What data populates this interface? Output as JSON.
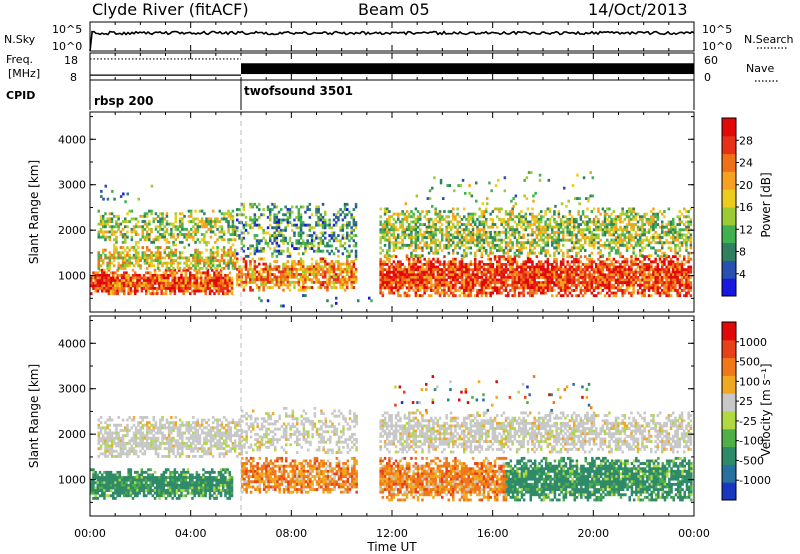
{
  "header": {
    "station": "Clyde River (fitACF)",
    "beam": "Beam 05",
    "date": "14/Oct/2013"
  },
  "strip_nsky": {
    "left_label": "N.Sky",
    "left_tick_top": "10^5",
    "left_tick_bottom": "10^0",
    "right_tick_top": "10^5",
    "right_tick_bottom": "10^0",
    "right_label": "N.Search",
    "nsky_level": 0.62,
    "nsearch_level": 0.62
  },
  "strip_freq": {
    "left_label_line1": "Freq.",
    "left_label_line2": "[MHz]",
    "left_tick_top": "18",
    "left_tick_bottom": "8",
    "right_tick_top": "60",
    "right_tick_bottom": "0",
    "right_label": "Nave",
    "freq_mhz": 10.2,
    "nave_segments": [
      {
        "from_hour": 0,
        "to_hour": 6,
        "dotted_level_fraction": 0.78,
        "solid_level_fraction": 0.18
      },
      {
        "from_hour": 6,
        "to_hour": 24,
        "band_low": 0.22,
        "band_high": 0.62
      }
    ]
  },
  "cpid": {
    "label": "CPID",
    "segments": [
      {
        "start_hour": 0,
        "name": "rbsp 200"
      },
      {
        "start_hour": 6,
        "name": "twofsound 3501"
      }
    ]
  },
  "chart_data": [
    {
      "type": "heatmap",
      "title": "",
      "xlabel": "",
      "ylabel": "Slant Range [km]",
      "xlim": [
        0,
        24
      ],
      "ylim": [
        200,
        4600
      ],
      "yticks": [
        "1000",
        "2000",
        "3000",
        "4000"
      ],
      "colorbar": {
        "label": "Power [dB]",
        "ticks": [
          "4",
          "8",
          "12",
          "16",
          "20",
          "24",
          "28"
        ],
        "colors": [
          "#1818e0",
          "#2850b0",
          "#2e8060",
          "#40b050",
          "#9ccc34",
          "#eccc1c",
          "#f8a020",
          "#f07018",
          "#e83018",
          "#e00808"
        ]
      },
      "bands": [
        {
          "t0": 0.0,
          "t1": 5.6,
          "r_lo": 600,
          "r_hi": 1150,
          "density": 0.95,
          "bias": 0.85
        },
        {
          "t0": 0.3,
          "t1": 5.8,
          "r_lo": 1150,
          "r_hi": 1650,
          "density": 0.7,
          "bias": 0.55
        },
        {
          "t0": 0.3,
          "t1": 5.8,
          "r_lo": 1700,
          "r_hi": 2450,
          "density": 0.55,
          "bias": 0.45
        },
        {
          "t0": 0.4,
          "t1": 2.5,
          "r_lo": 2600,
          "r_hi": 3000,
          "density": 0.08,
          "bias": 0.25
        },
        {
          "t0": 5.8,
          "t1": 10.6,
          "r_lo": 700,
          "r_hi": 1400,
          "density": 0.8,
          "bias": 0.7
        },
        {
          "t0": 5.8,
          "t1": 10.6,
          "r_lo": 1400,
          "r_hi": 2600,
          "density": 0.45,
          "bias": 0.3
        },
        {
          "t0": 6.5,
          "t1": 11.2,
          "r_lo": 300,
          "r_hi": 650,
          "density": 0.06,
          "bias": 0.1
        },
        {
          "t0": 11.5,
          "t1": 23.9,
          "r_lo": 550,
          "r_hi": 1450,
          "density": 0.92,
          "bias": 0.88
        },
        {
          "t0": 11.5,
          "t1": 23.9,
          "r_lo": 1450,
          "r_hi": 2500,
          "density": 0.65,
          "bias": 0.45
        },
        {
          "t0": 12.5,
          "t1": 20.0,
          "r_lo": 2500,
          "r_hi": 3300,
          "density": 0.07,
          "bias": 0.4
        }
      ]
    },
    {
      "type": "heatmap",
      "title": "",
      "xlabel": "Time UT",
      "ylabel": "Slant Range [km]",
      "xlim": [
        0,
        24
      ],
      "ylim": [
        200,
        4600
      ],
      "yticks": [
        "1000",
        "2000",
        "3000",
        "4000"
      ],
      "xticks": [
        "00:00",
        "04:00",
        "08:00",
        "12:00",
        "16:00",
        "20:00",
        "00:00"
      ],
      "colorbar": {
        "label": "Velocity [m s⁻¹]",
        "ticks": [
          "1000",
          "500",
          "100",
          "25",
          "-25",
          "-100",
          "-500",
          "-1000"
        ],
        "colors": [
          "#1838c0",
          "#2870a0",
          "#2e8a68",
          "#50b048",
          "#b0d840",
          "#c8c8c8",
          "#f0a820",
          "#f07818",
          "#e84018",
          "#e00808"
        ]
      },
      "bands": [
        {
          "t0": 0.0,
          "t1": 5.6,
          "r_lo": 600,
          "r_hi": 1250,
          "density": 0.95,
          "kind": "green"
        },
        {
          "t0": 0.3,
          "t1": 6.0,
          "r_lo": 1500,
          "r_hi": 2400,
          "density": 0.75,
          "kind": "grey"
        },
        {
          "t0": 6.0,
          "t1": 10.6,
          "r_lo": 700,
          "r_hi": 1500,
          "density": 0.8,
          "kind": "orange"
        },
        {
          "t0": 6.0,
          "t1": 10.6,
          "r_lo": 1600,
          "r_hi": 2600,
          "density": 0.45,
          "kind": "grey"
        },
        {
          "t0": 11.5,
          "t1": 16.5,
          "r_lo": 550,
          "r_hi": 1500,
          "density": 0.9,
          "kind": "orange"
        },
        {
          "t0": 16.5,
          "t1": 23.9,
          "r_lo": 550,
          "r_hi": 1500,
          "density": 0.9,
          "kind": "green"
        },
        {
          "t0": 11.5,
          "t1": 23.9,
          "r_lo": 1600,
          "r_hi": 2500,
          "density": 0.7,
          "kind": "grey"
        },
        {
          "t0": 12.0,
          "t1": 20.0,
          "r_lo": 2500,
          "r_hi": 3300,
          "density": 0.06,
          "kind": "mixed"
        }
      ]
    }
  ]
}
